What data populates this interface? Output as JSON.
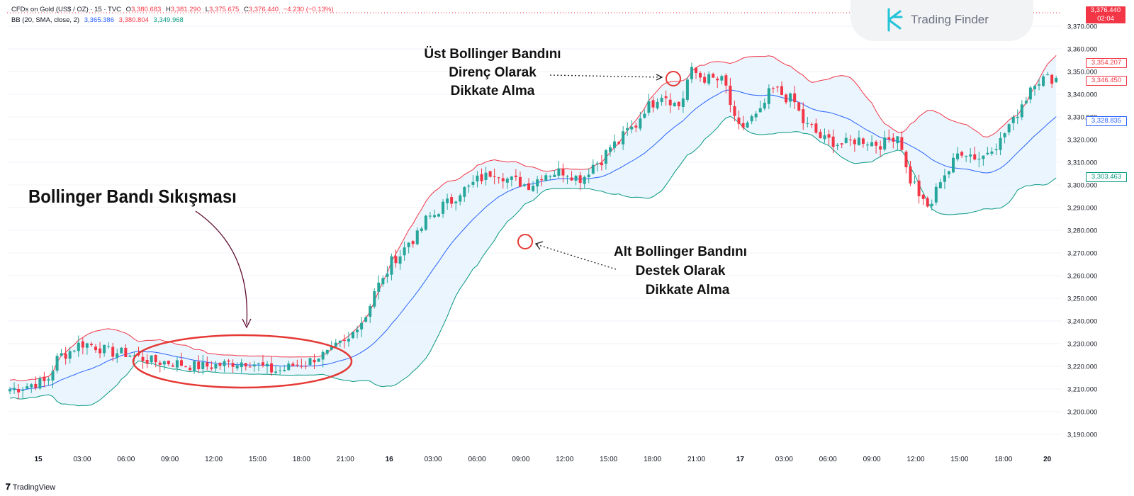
{
  "header": {
    "symbol": "CFDs on Gold (US$ / OZ) · 15 · TVC",
    "open_label": "O",
    "open": "3,380.683",
    "high_label": "H",
    "high": "3,381.290",
    "low_label": "L",
    "low": "3,375.675",
    "close_label": "C",
    "close": "3,376.440",
    "change": "−4.230 (−0.13%)"
  },
  "indicator": {
    "name": "BB (20, SMA, close, 2)",
    "basis": "3,365.386",
    "upper": "3,380.804",
    "lower": "3,349.968"
  },
  "price_badges": {
    "last": "3,376.440",
    "countdown": "02:04",
    "upper": "3,354.207",
    "candle": "3,346.450",
    "basis": "3,328.835",
    "lower": "3,303.463"
  },
  "watermark": {
    "text": "Trading Finder",
    "logo": "trading-finder-logo"
  },
  "footer": {
    "brand": "TradingView",
    "brand_icon": "tradingview-logo"
  },
  "annotations": {
    "squeeze": "Bollinger Bandı Sıkışması",
    "upper_line1": "Üst Bollinger Bandını",
    "upper_line2": "Direnç Olarak",
    "upper_line3": "Dikkate Alma",
    "lower_line1": "Alt Bollinger Bandını",
    "lower_line2": "Destek Olarak",
    "lower_line3": "Dikkate Alma"
  },
  "colors": {
    "up": "#26a69a",
    "down": "#f23645",
    "basis": "#2962ff",
    "upper": "#f23645",
    "lower": "#089981",
    "fill": "#e3f2fd",
    "annotation": "#e53935"
  },
  "chart_data": {
    "type": "candlestick",
    "yticks": [
      3190,
      3200,
      3210,
      3220,
      3230,
      3240,
      3250,
      3260,
      3270,
      3280,
      3290,
      3300,
      3310,
      3320,
      3330,
      3340,
      3350,
      3360,
      3370
    ],
    "ylim": [
      3180,
      3372
    ],
    "x_labels": [
      "15",
      "03:00",
      "06:00",
      "09:00",
      "12:00",
      "15:00",
      "18:00",
      "21:00",
      "16",
      "03:00",
      "06:00",
      "09:00",
      "12:00",
      "15:00",
      "18:00",
      "21:00",
      "17",
      "03:00",
      "06:00",
      "09:00",
      "12:00",
      "15:00",
      "18:00",
      "20"
    ],
    "x_label_bold": [
      true,
      false,
      false,
      false,
      false,
      false,
      false,
      false,
      true,
      false,
      false,
      false,
      false,
      false,
      false,
      false,
      true,
      false,
      false,
      false,
      false,
      false,
      false,
      true
    ],
    "close_path": [
      [
        0,
        3210
      ],
      [
        8,
        3213
      ],
      [
        12,
        3225
      ],
      [
        17,
        3230
      ],
      [
        25,
        3226
      ],
      [
        35,
        3222
      ],
      [
        45,
        3220
      ],
      [
        55,
        3222
      ],
      [
        62,
        3218
      ],
      [
        68,
        3221
      ],
      [
        73,
        3225
      ],
      [
        78,
        3230
      ],
      [
        82,
        3240
      ],
      [
        86,
        3256
      ],
      [
        90,
        3268
      ],
      [
        94,
        3276
      ],
      [
        98,
        3286
      ],
      [
        102,
        3292
      ],
      [
        106,
        3298
      ],
      [
        110,
        3303
      ],
      [
        113,
        3306
      ],
      [
        117,
        3302
      ],
      [
        121,
        3300
      ],
      [
        125,
        3305
      ],
      [
        129,
        3306
      ],
      [
        133,
        3303
      ],
      [
        137,
        3310
      ],
      [
        141,
        3318
      ],
      [
        145,
        3325
      ],
      [
        149,
        3335
      ],
      [
        152,
        3340
      ],
      [
        156,
        3335
      ],
      [
        159,
        3350
      ],
      [
        162,
        3347
      ],
      [
        166,
        3346
      ],
      [
        170,
        3325
      ],
      [
        174,
        3330
      ],
      [
        178,
        3342
      ],
      [
        182,
        3338
      ],
      [
        186,
        3326
      ],
      [
        190,
        3320
      ],
      [
        194,
        3318
      ],
      [
        198,
        3320
      ],
      [
        203,
        3318
      ],
      [
        207,
        3322
      ],
      [
        210,
        3302
      ],
      [
        214,
        3290
      ],
      [
        218,
        3305
      ],
      [
        222,
        3315
      ],
      [
        226,
        3312
      ],
      [
        230,
        3318
      ],
      [
        234,
        3328
      ],
      [
        236,
        3336
      ],
      [
        239,
        3346
      ],
      [
        242,
        3347
      ]
    ],
    "bands_note": "BB (20, SMA, close, 2)"
  }
}
